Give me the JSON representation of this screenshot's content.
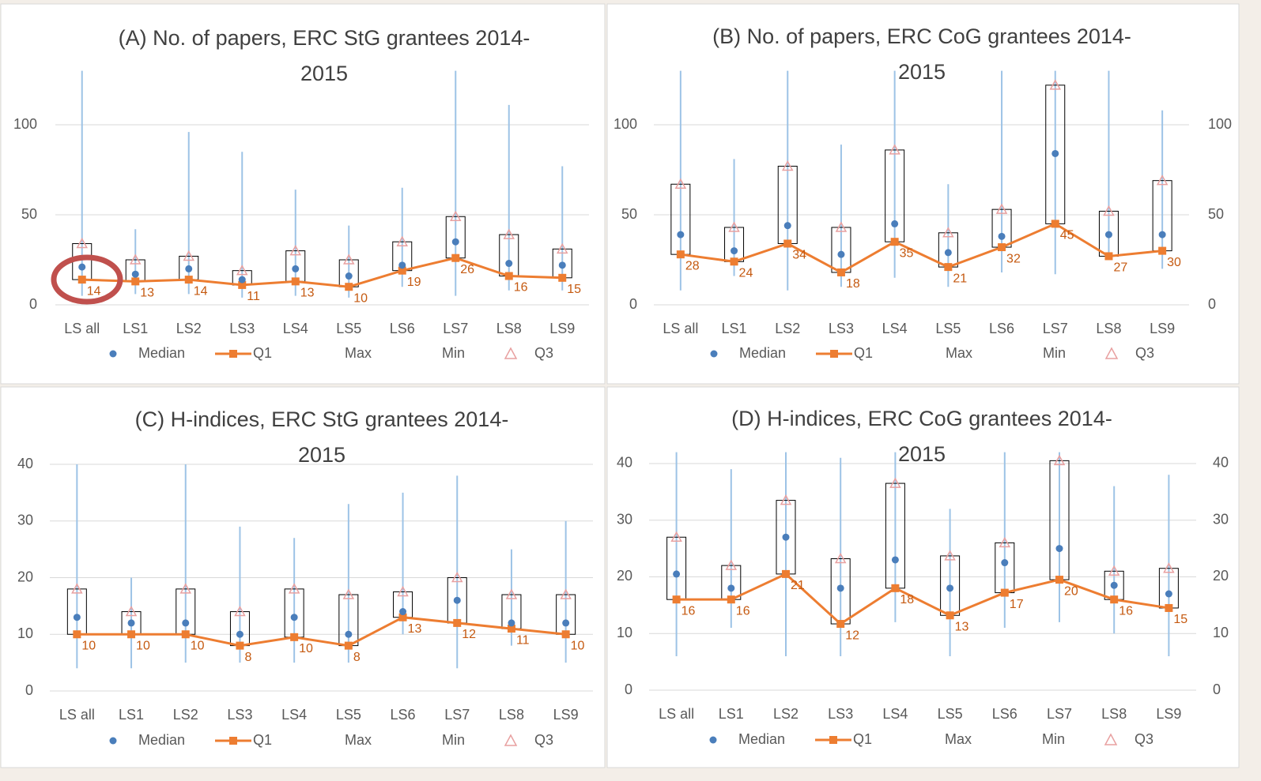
{
  "chart_data": [
    {
      "type": "box",
      "title": "(A) No. of papers, ERC StG grantees 2014-2015",
      "categories": [
        "LS all",
        "LS1",
        "LS2",
        "LS3",
        "LS4",
        "LS5",
        "LS6",
        "LS7",
        "LS8",
        "LS9"
      ],
      "ylim": [
        0,
        130
      ],
      "yticks": [
        0,
        50,
        100
      ],
      "grid": true,
      "series": [
        {
          "name": "Median",
          "color": "#4a7ebb",
          "values": [
            21,
            17,
            20,
            14,
            20,
            16,
            22,
            35,
            23,
            22
          ]
        },
        {
          "name": "Q1",
          "color": "#ed7d31",
          "values": [
            14,
            13,
            14,
            11,
            13,
            10,
            19,
            26,
            16,
            15
          ],
          "value_labels": [
            "14",
            "13",
            "14",
            "11",
            "13",
            "10",
            "19",
            "26",
            "16",
            "15"
          ]
        },
        {
          "name": "Max",
          "color": "#9dc3e6",
          "values": [
            130,
            42,
            96,
            85,
            64,
            44,
            65,
            130,
            111,
            77
          ]
        },
        {
          "name": "Min",
          "color": "#9dc3e6",
          "values": [
            5,
            6,
            6,
            4,
            5,
            4,
            10,
            5,
            8,
            8
          ]
        },
        {
          "name": "Q3",
          "color": "#e8a0a0",
          "values": [
            34,
            25,
            27,
            19,
            30,
            25,
            35,
            49,
            39,
            31
          ]
        }
      ]
    },
    {
      "type": "box",
      "title": "(B) No. of papers, ERC CoG grantees 2014-2015",
      "categories": [
        "LS all",
        "LS1",
        "LS2",
        "LS3",
        "LS4",
        "LS5",
        "LS6",
        "LS7",
        "LS8",
        "LS9"
      ],
      "ylim": [
        0,
        130
      ],
      "yticks": [
        0,
        50,
        100
      ],
      "y2lim": [
        0,
        130
      ],
      "y2ticks": [
        0,
        50,
        100
      ],
      "grid": true,
      "series": [
        {
          "name": "Median",
          "color": "#4a7ebb",
          "values": [
            39,
            30,
            44,
            28,
            45,
            29,
            38,
            84,
            39,
            39
          ]
        },
        {
          "name": "Q1",
          "color": "#ed7d31",
          "values": [
            28,
            24,
            34,
            18,
            35,
            21,
            32,
            45,
            27,
            30
          ],
          "value_labels": [
            "28",
            "24",
            "34",
            "18",
            "35",
            "21",
            "32",
            "45",
            "27",
            "30"
          ]
        },
        {
          "name": "Max",
          "color": "#9dc3e6",
          "values": [
            130,
            81,
            130,
            89,
            130,
            67,
            130,
            130,
            130,
            108
          ]
        },
        {
          "name": "Min",
          "color": "#9dc3e6",
          "values": [
            8,
            16,
            8,
            10,
            15,
            10,
            18,
            17,
            26,
            20
          ]
        },
        {
          "name": "Q3",
          "color": "#e8a0a0",
          "values": [
            67,
            43,
            77,
            43,
            86,
            40,
            53,
            122,
            52,
            69
          ]
        }
      ]
    },
    {
      "type": "box",
      "title": "(C) H-indices, ERC StG grantees 2014-2015",
      "categories": [
        "LS all",
        "LS1",
        "LS2",
        "LS3",
        "LS4",
        "LS5",
        "LS6",
        "LS7",
        "LS8",
        "LS9"
      ],
      "ylim": [
        0,
        40
      ],
      "yticks": [
        0,
        10,
        20,
        30,
        40
      ],
      "grid": true,
      "series": [
        {
          "name": "Median",
          "color": "#4a7ebb",
          "values": [
            13,
            12,
            12,
            10,
            13,
            10,
            14,
            16,
            12,
            12
          ]
        },
        {
          "name": "Q1",
          "color": "#ed7d31",
          "values": [
            10,
            10,
            10,
            8,
            9.5,
            8,
            13,
            12,
            11,
            10
          ],
          "value_labels": [
            "10",
            "10",
            "10",
            "8",
            "10",
            "8",
            "13",
            "12",
            "11",
            "10"
          ]
        },
        {
          "name": "Max",
          "color": "#9dc3e6",
          "values": [
            40,
            20,
            40,
            29,
            27,
            33,
            35,
            38,
            25,
            30
          ]
        },
        {
          "name": "Min",
          "color": "#9dc3e6",
          "values": [
            4,
            4,
            5,
            5,
            5,
            5,
            10,
            4,
            8,
            5
          ]
        },
        {
          "name": "Q3",
          "color": "#e8a0a0",
          "values": [
            18,
            14,
            18,
            14,
            18,
            17,
            17.5,
            20,
            17,
            17
          ]
        }
      ]
    },
    {
      "type": "box",
      "title": "(D) H-indices, ERC CoG grantees 2014-2015",
      "categories": [
        "LS all",
        "LS1",
        "LS2",
        "LS3",
        "LS4",
        "LS5",
        "LS6",
        "LS7",
        "LS8",
        "LS9"
      ],
      "ylim": [
        0,
        42
      ],
      "yticks": [
        0,
        10,
        20,
        30,
        40
      ],
      "y2lim": [
        0,
        42
      ],
      "y2ticks": [
        0,
        10,
        20,
        30,
        40
      ],
      "grid": true,
      "series": [
        {
          "name": "Median",
          "color": "#4a7ebb",
          "values": [
            20.5,
            18,
            27,
            18,
            23,
            18,
            22.5,
            25,
            18.5,
            17
          ]
        },
        {
          "name": "Q1",
          "color": "#ed7d31",
          "values": [
            16,
            16,
            20.5,
            11.7,
            18,
            13.2,
            17.2,
            19.5,
            16,
            14.5
          ],
          "value_labels": [
            "16",
            "16",
            "21",
            "12",
            "18",
            "13",
            "17",
            "20",
            "16",
            "15"
          ]
        },
        {
          "name": "Max",
          "color": "#9dc3e6",
          "values": [
            42,
            39,
            42,
            41,
            42,
            32,
            42,
            42,
            36,
            38
          ]
        },
        {
          "name": "Min",
          "color": "#9dc3e6",
          "values": [
            6,
            11,
            6,
            6,
            12,
            6,
            11,
            12,
            10,
            6
          ]
        },
        {
          "name": "Q3",
          "color": "#e8a0a0",
          "values": [
            27,
            22,
            33.5,
            23.2,
            36.5,
            23.7,
            26,
            40.5,
            21,
            21.5
          ]
        }
      ]
    }
  ]
}
